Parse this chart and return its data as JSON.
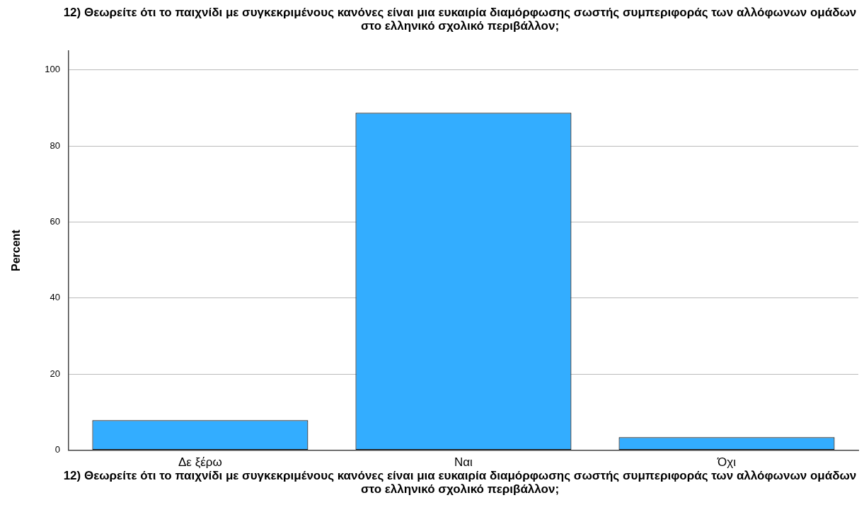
{
  "chart_data": {
    "type": "bar",
    "title": "12) Θεωρείτε ότι το παιχνίδι με συγκεκριμένους κανόνες είναι μια ευκαιρία διαμόρφωσης σωστής συμπεριφοράς των αλλόφωνων ομάδων στο ελληνικό σχολικό περιβάλλον;",
    "xlabel": "12) Θεωρείτε ότι το παιχνίδι με συγκεκριμένους κανόνες είναι μια ευκαιρία διαμόρφωσης σωστής συμπεριφοράς των αλλόφωνων ομάδων στο ελληνικό σχολικό περιβάλλον;",
    "ylabel": "Percent",
    "categories": [
      "Δε ξέρω",
      "Ναι",
      "Όχι"
    ],
    "values": [
      7.9,
      88.7,
      3.4
    ],
    "color": "#33adff",
    "ylim": [
      0,
      105
    ],
    "yticks": [
      0,
      20,
      40,
      60,
      80,
      100
    ],
    "grid": "y"
  }
}
